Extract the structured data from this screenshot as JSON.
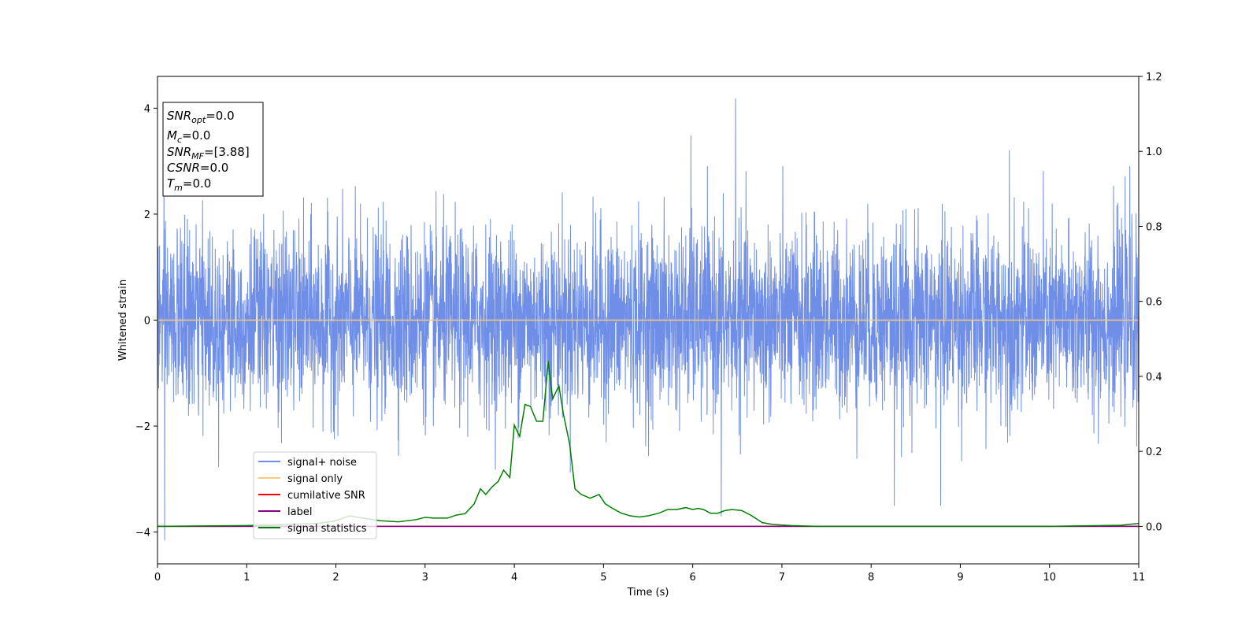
{
  "chart_data": {
    "type": "line",
    "xlabel": "Time (s)",
    "ylabel": "Whitened strain",
    "xlim": [
      0,
      11
    ],
    "ylim_left": [
      -4.6,
      4.6
    ],
    "ylim_right": [
      -0.1,
      1.2
    ],
    "x_ticks": [
      0,
      1,
      2,
      3,
      4,
      5,
      6,
      7,
      8,
      9,
      10,
      11
    ],
    "y_ticks_left": [
      -4,
      -2,
      0,
      2,
      4
    ],
    "y_ticks_right": [
      0.0,
      0.2,
      0.4,
      0.6,
      0.8,
      1.0,
      1.2
    ],
    "x_tick_labels": [
      "0",
      "1",
      "2",
      "3",
      "4",
      "5",
      "6",
      "7",
      "8",
      "9",
      "10",
      "11"
    ],
    "y_tick_labels_left": [
      "−4",
      "−2",
      "0",
      "2",
      "4"
    ],
    "y_tick_labels_right": [
      "0.0",
      "0.2",
      "0.4",
      "0.6",
      "0.8",
      "1.0",
      "1.2"
    ],
    "grid": false,
    "legend_position": "lower-left",
    "info_box": {
      "snr_opt": {
        "base": "SNR",
        "sub": "opt",
        "value": "=0.0"
      },
      "mc": {
        "base": "M",
        "sub": "c",
        "value": "=0.0"
      },
      "snr_mf": {
        "base": "SNR",
        "sub": "MF",
        "value": "=[3.88]"
      },
      "csnr": {
        "base": "CSNR",
        "sub": "",
        "value": "=0.0"
      },
      "tm": {
        "base": "T",
        "sub": "m",
        "value": "=0.0"
      }
    },
    "series": [
      {
        "name": "signal+ noise",
        "color": "#6f8ee8",
        "axis": "left",
        "description_amplitude": 1.0,
        "extremes": [
          {
            "x": 0.08,
            "y": -4.15
          },
          {
            "x": 6.48,
            "y": 4.18
          },
          {
            "x": 5.98,
            "y": 3.48
          },
          {
            "x": 6.32,
            "y": -3.7
          },
          {
            "x": 8.26,
            "y": -3.5
          },
          {
            "x": 8.78,
            "y": -3.5
          },
          {
            "x": 9.55,
            "y": 3.2
          },
          {
            "x": 10.9,
            "y": 2.9
          }
        ]
      },
      {
        "name": "signal only",
        "color": "#ffc97a",
        "axis": "left",
        "x": [
          0,
          11
        ],
        "y": [
          0,
          0
        ]
      },
      {
        "name": "cumilative SNR",
        "color": "#ff0000",
        "axis": "right",
        "x": [
          0,
          11
        ],
        "y": [
          0,
          0
        ]
      },
      {
        "name": "label",
        "color": "#800080",
        "axis": "right",
        "x": [
          0,
          11
        ],
        "y": [
          0,
          0
        ]
      },
      {
        "name": "signal statistics",
        "color": "#008000",
        "axis": "right",
        "x": [
          0.0,
          0.5,
          1.0,
          1.5,
          1.8,
          2.0,
          2.15,
          2.3,
          2.5,
          2.7,
          2.9,
          3.0,
          3.1,
          3.25,
          3.35,
          3.45,
          3.55,
          3.62,
          3.68,
          3.75,
          3.82,
          3.88,
          3.95,
          4.0,
          4.06,
          4.12,
          4.18,
          4.25,
          4.32,
          4.38,
          4.43,
          4.5,
          4.55,
          4.62,
          4.68,
          4.75,
          4.85,
          4.95,
          5.02,
          5.1,
          5.2,
          5.3,
          5.4,
          5.5,
          5.62,
          5.72,
          5.82,
          5.92,
          6.0,
          6.06,
          6.12,
          6.2,
          6.28,
          6.36,
          6.44,
          6.55,
          6.65,
          6.78,
          6.9,
          7.1,
          7.4,
          8.0,
          9.0,
          10.0,
          10.8,
          11.0
        ],
        "y": [
          0.0,
          0.001,
          0.002,
          0.005,
          0.008,
          0.015,
          0.028,
          0.022,
          0.015,
          0.012,
          0.018,
          0.024,
          0.022,
          0.022,
          0.03,
          0.034,
          0.06,
          0.1,
          0.085,
          0.105,
          0.12,
          0.15,
          0.13,
          0.27,
          0.24,
          0.325,
          0.32,
          0.28,
          0.28,
          0.44,
          0.34,
          0.375,
          0.3,
          0.22,
          0.1,
          0.085,
          0.075,
          0.085,
          0.06,
          0.048,
          0.035,
          0.028,
          0.025,
          0.028,
          0.035,
          0.045,
          0.045,
          0.05,
          0.045,
          0.048,
          0.045,
          0.035,
          0.035,
          0.042,
          0.045,
          0.042,
          0.03,
          0.01,
          0.005,
          0.002,
          0.0,
          0.0,
          0.0,
          0.0,
          0.003,
          0.008
        ]
      }
    ]
  }
}
